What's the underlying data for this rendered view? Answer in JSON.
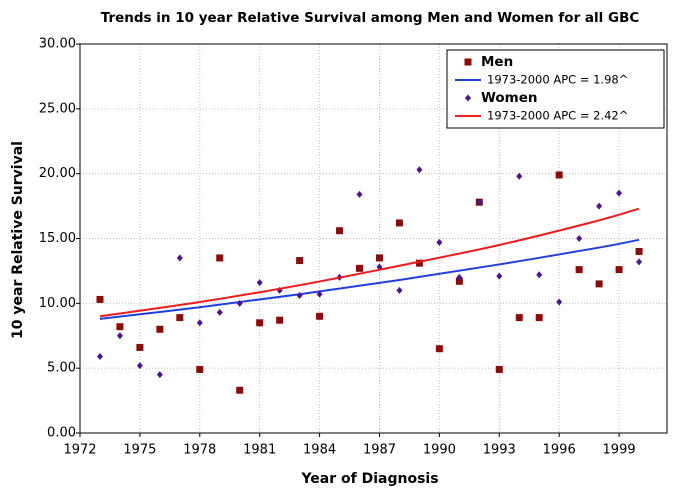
{
  "chart_data": {
    "type": "scatter",
    "title": "Trends in 10 year Relative Survival among Men and Women for all GBC",
    "x_label": "Year of Diagnosis",
    "y_label": "10 year Relative Survival",
    "xlim": [
      1972,
      2001.4
    ],
    "ylim": [
      0,
      30
    ],
    "xticks": [
      1972,
      1975,
      1978,
      1981,
      1984,
      1987,
      1990,
      1993,
      1996,
      1999
    ],
    "yticks": [
      {
        "value": 0,
        "label": "0.00"
      },
      {
        "value": 5,
        "label": "5.00"
      },
      {
        "value": 10,
        "label": "10.00"
      },
      {
        "value": 15,
        "label": "15.00"
      },
      {
        "value": 20,
        "label": "20.00"
      },
      {
        "value": 25,
        "label": "25.00"
      },
      {
        "value": 30,
        "label": "30.00"
      }
    ],
    "grid": true,
    "legend": "upper right",
    "series": [
      {
        "name": "Men",
        "marker": "square",
        "color": "#8b0a0a",
        "x": [
          1973,
          1974,
          1975,
          1976,
          1977,
          1978,
          1979,
          1980,
          1981,
          1982,
          1983,
          1984,
          1985,
          1986,
          1987,
          1988,
          1989,
          1990,
          1991,
          1992,
          1993,
          1994,
          1995,
          1996,
          1997,
          1998,
          1999,
          2000
        ],
        "values": [
          10.3,
          8.2,
          6.6,
          8.0,
          8.9,
          4.9,
          13.5,
          3.3,
          8.5,
          8.7,
          13.3,
          9.0,
          15.6,
          12.7,
          13.5,
          16.2,
          13.1,
          6.5,
          11.7,
          17.8,
          4.9,
          8.9,
          8.9,
          19.9,
          12.6,
          11.5,
          12.6,
          14.0
        ]
      },
      {
        "name": "1973-2000 APC  = 1.98^",
        "marker": "line",
        "color": "#1f3fe0",
        "x": [
          1973,
          1978,
          1983,
          1988,
          1993,
          1998,
          2000
        ],
        "values": [
          8.8,
          9.7,
          10.7,
          11.8,
          13.0,
          14.3,
          14.9
        ]
      },
      {
        "name": "Women",
        "marker": "diamond",
        "color": "#4b1590",
        "x": [
          1973,
          1974,
          1975,
          1976,
          1977,
          1978,
          1979,
          1980,
          1981,
          1982,
          1983,
          1984,
          1985,
          1986,
          1987,
          1988,
          1989,
          1990,
          1991,
          1992,
          1993,
          1994,
          1995,
          1996,
          1997,
          1998,
          1999,
          2000
        ],
        "values": [
          5.9,
          7.5,
          5.2,
          4.5,
          13.5,
          8.5,
          9.3,
          10.0,
          11.6,
          11.0,
          10.6,
          10.7,
          12.0,
          18.4,
          12.8,
          11.0,
          20.3,
          14.7,
          12.0,
          17.8,
          12.1,
          19.8,
          12.2,
          10.1,
          15.0,
          17.5,
          18.5,
          13.2
        ]
      },
      {
        "name": "1973-2000 APC  = 2.42^",
        "marker": "line",
        "color": "#ee1c1c",
        "x": [
          1973,
          1978,
          1983,
          1988,
          1993,
          1998,
          2000
        ],
        "values": [
          9.0,
          10.1,
          11.4,
          12.9,
          14.5,
          16.4,
          17.3
        ]
      }
    ]
  }
}
